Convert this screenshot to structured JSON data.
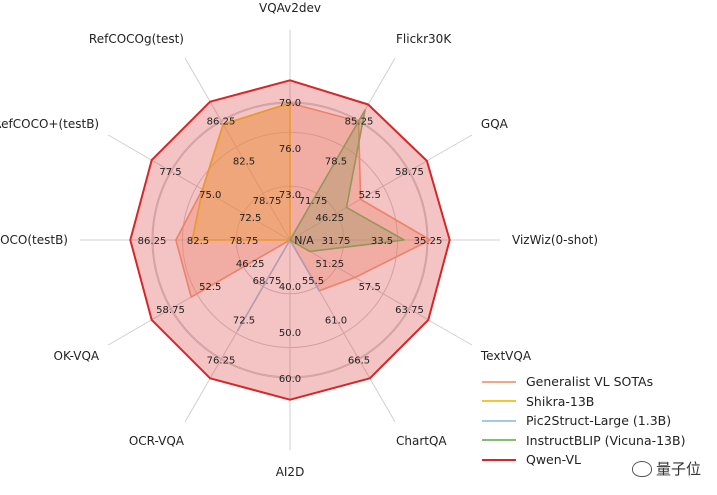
{
  "chart_data": {
    "type": "radar",
    "center_label": "N/A",
    "axes": [
      {
        "label": "VQAv2dev",
        "ticks": [
          "73.0",
          "76.0",
          "79.0"
        ],
        "max": 79.0
      },
      {
        "label": "Flickr30K",
        "ticks": [
          "71.75",
          "78.5",
          "85.25"
        ],
        "max": 85.25
      },
      {
        "label": "GQA",
        "ticks": [
          "46.25",
          "52.5",
          "58.75"
        ],
        "max": 58.75
      },
      {
        "label": "VizWiz(0-shot)",
        "ticks": [
          "31.75",
          "33.5",
          "35.25"
        ],
        "max": 35.25
      },
      {
        "label": "TextVQA",
        "ticks": [
          "51.25",
          "57.5",
          "63.75"
        ],
        "max": 63.75
      },
      {
        "label": "ChartQA",
        "ticks": [
          "55.5",
          "61.0",
          "66.5"
        ],
        "max": 66.5
      },
      {
        "label": "AI2D",
        "ticks": [
          "40.0",
          "50.0",
          "60.0"
        ],
        "max": 60.0
      },
      {
        "label": "OCR-VQA",
        "ticks": [
          "68.75",
          "72.5",
          "76.25"
        ],
        "max": 76.25
      },
      {
        "label": "OK-VQA",
        "ticks": [
          "46.25",
          "52.5",
          "58.75"
        ],
        "max": 58.75
      },
      {
        "label": "RefCOCO(testB)",
        "ticks": [
          "78.75",
          "82.5",
          "86.25"
        ],
        "max": 86.25
      },
      {
        "label": "RefCOCO+(testB)",
        "ticks": [
          "72.5",
          "75.0",
          "77.5"
        ],
        "max": 77.5
      },
      {
        "label": "RefCOCOg(test)",
        "ticks": [
          "78.75",
          "82.5",
          "86.25"
        ],
        "max": 86.25
      }
    ],
    "series": [
      {
        "name": "Generalist VL SOTAs",
        "color": "#f4a582",
        "fractions": [
          0.84,
          0.84,
          0.5,
          0.86,
          0.46,
          0.36,
          0.0,
          0.0,
          0.7,
          0.7,
          0.62,
          0.82
        ]
      },
      {
        "name": "Shikra-13B",
        "color": "#f2c531",
        "fractions": [
          0.84,
          0.0,
          0.0,
          0.0,
          0.0,
          0.0,
          0.0,
          0.0,
          0.0,
          0.6,
          0.62,
          0.82
        ]
      },
      {
        "name": "Pic2Struct-Large (1.3B)",
        "color": "#a6c8e8",
        "fractions": [
          0.0,
          0.0,
          0.0,
          0.0,
          0.0,
          0.36,
          0.0,
          0.64,
          0.0,
          0.0,
          0.0,
          0.0
        ]
      },
      {
        "name": "InstructBLIP (Vicuna-13B)",
        "color": "#7fbf6e",
        "fractions": [
          0.0,
          0.92,
          0.4,
          0.7,
          0.14,
          0.0,
          0.0,
          0.0,
          0.0,
          0.0,
          0.0,
          0.0
        ]
      },
      {
        "name": "Qwen-VL",
        "color": "#d62728",
        "fractions": [
          0.98,
          0.96,
          0.97,
          0.98,
          0.98,
          0.98,
          0.98,
          0.98,
          0.98,
          0.98,
          0.98,
          0.98
        ]
      }
    ],
    "grid": true,
    "legend_position": "bottom-right"
  },
  "watermark": {
    "text": "量子位",
    "icon": "wechat-logo-icon"
  }
}
